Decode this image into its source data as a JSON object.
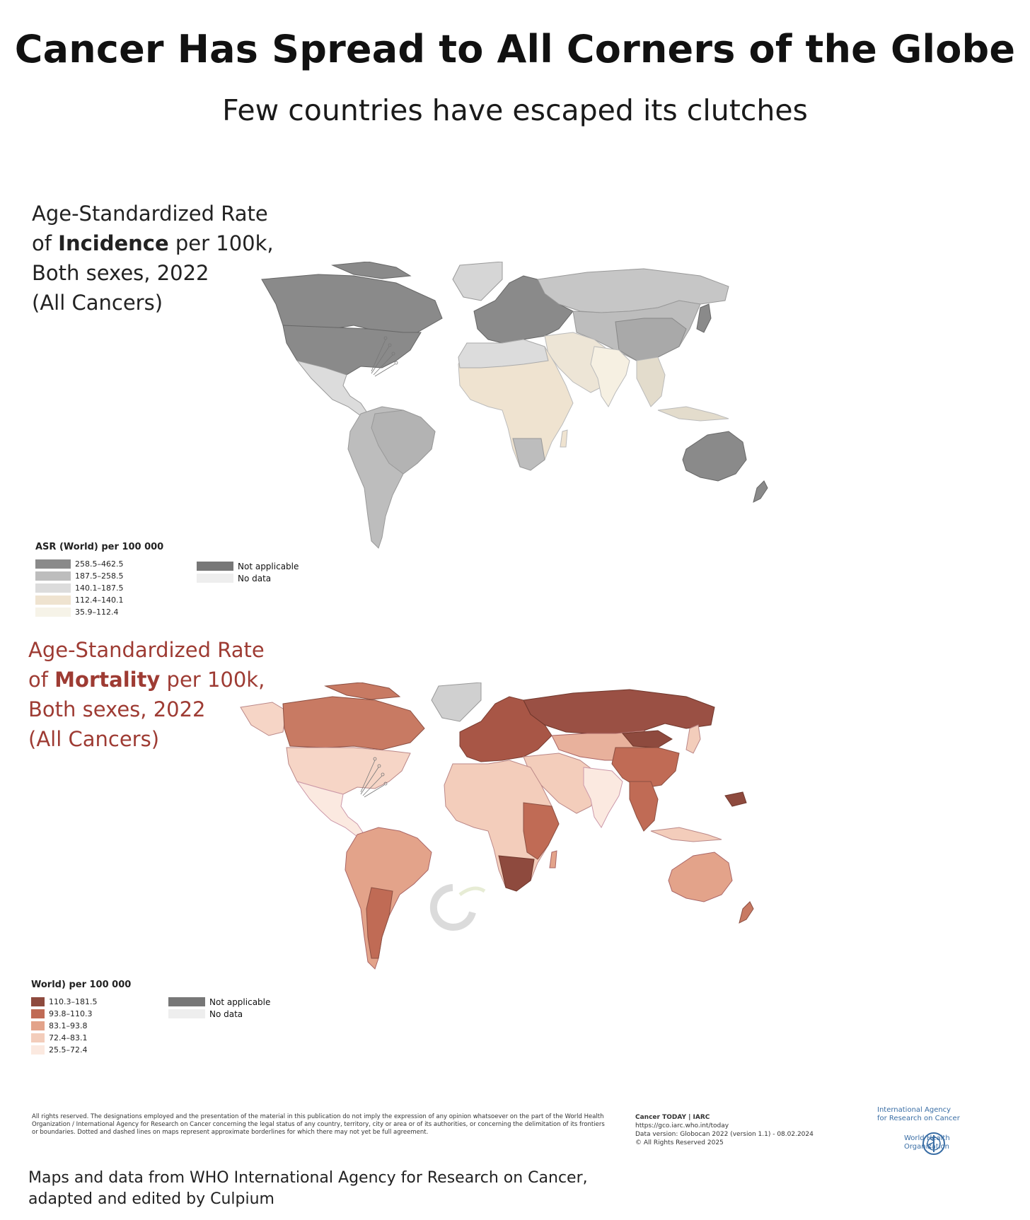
{
  "title": "Cancer Has Spread to All Corners of the Globe",
  "subtitle": "Few countries have escaped its clutches",
  "incidence_map": {
    "title_line1": "Age-Standardized Rate",
    "title_of": "of ",
    "title_bold": "Incidence",
    "title_line2_rest": " per 100k,",
    "title_line3": "Both sexes, 2022",
    "title_line4": "(All Cancers)",
    "legend": {
      "title": "ASR (World) per 100 000",
      "items": [
        {
          "label": "258.5–462.5",
          "color": "#8a8a8a"
        },
        {
          "label": "187.5–258.5",
          "color": "#bdbdbd"
        },
        {
          "label": "140.1–187.5",
          "color": "#dcdcdc"
        },
        {
          "label": "112.4–140.1",
          "color": "#efe3d0"
        },
        {
          "label": "35.9–112.4",
          "color": "#f6f3e8"
        }
      ],
      "na": {
        "label": "Not applicable",
        "color": "#777777"
      },
      "nodata": {
        "label": "No data",
        "color": "#eeeeee"
      }
    }
  },
  "mortality_map": {
    "title_line1": "Age-Standardized Rate",
    "title_of": "of ",
    "title_bold": "Mortality",
    "title_line2_rest": " per 100k,",
    "title_line3": "Both sexes, 2022",
    "title_line4": "(All Cancers)",
    "legend": {
      "title": "World) per 100 000",
      "items": [
        {
          "label": "110.3–181.5",
          "color": "#8e4a3e"
        },
        {
          "label": "93.8–110.3",
          "color": "#c06b55"
        },
        {
          "label": "83.1–93.8",
          "color": "#e3a38a"
        },
        {
          "label": "72.4–83.1",
          "color": "#f3cdbb"
        },
        {
          "label": "25.5–72.4",
          "color": "#fbe9e0"
        }
      ],
      "na": {
        "label": "Not applicable",
        "color": "#777777"
      },
      "nodata": {
        "label": "No data",
        "color": "#eeeeee"
      }
    }
  },
  "footer": {
    "disclaimer": "All rights reserved. The designations employed and the presentation of the material in this publication do not imply the expression of any opinion whatsoever on the part of the World Health Organization / International Agency for Research on Cancer concerning the legal status of any country, territory, city or area or of its authorities, or concerning the delimitation of its frontiers or boundaries. Dotted and dashed lines on maps represent approximate borderlines for which there may not yet be full agreement.",
    "cancer_today": "Cancer TODAY | IARC",
    "url": "https://gco.iarc.who.int/today",
    "version": "Data version: Globocan 2022 (version 1.1) - 08.02.2024",
    "rights": "© All Rights Reserved 2025",
    "iarc_line1": "International Agency",
    "iarc_line2": "for Research on Cancer",
    "who_line1": "World Health",
    "who_line2": "Organization",
    "credit_line1": "Maps and data  from WHO International Agency for Research on Cancer,",
    "credit_line2": "adapted and edited by Culpium"
  }
}
